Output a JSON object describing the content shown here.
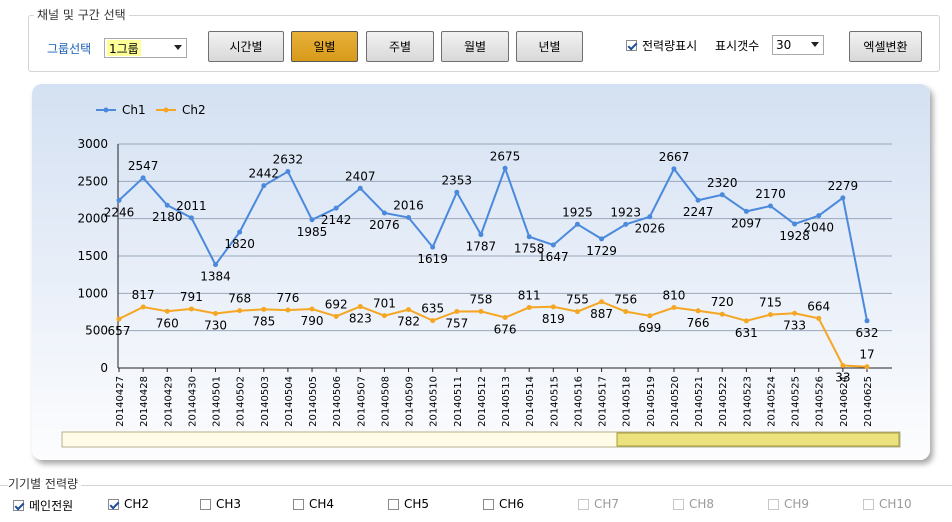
{
  "group_box": {
    "title": "채널 및 구간 선택"
  },
  "group_select": {
    "label": "그룹선택",
    "value": "1그룹"
  },
  "period_buttons": [
    {
      "label": "시간별",
      "active": false
    },
    {
      "label": "일별",
      "active": true
    },
    {
      "label": "주별",
      "active": false
    },
    {
      "label": "월별",
      "active": false
    },
    {
      "label": "년별",
      "active": false
    }
  ],
  "power_display": {
    "label": "전력량표시",
    "checked": true
  },
  "display_count": {
    "label": "표시갯수",
    "value": "30"
  },
  "excel_button": {
    "label": "엑셀변환"
  },
  "chart_data": {
    "type": "line",
    "title": "",
    "xlabel": "",
    "ylabel": "",
    "ylim": [
      0,
      3000
    ],
    "yticks": [
      0,
      500,
      1000,
      1500,
      2000,
      2500,
      3000
    ],
    "grid": true,
    "legend_position": "top-left",
    "categories": [
      "20140427",
      "20140428",
      "20140429",
      "20140430",
      "20140501",
      "20140502",
      "20140503",
      "20140504",
      "20140505",
      "20140506",
      "20140507",
      "20140508",
      "20140509",
      "20140510",
      "20140511",
      "20140512",
      "20140513",
      "20140514",
      "20140515",
      "20140516",
      "20140517",
      "20140518",
      "20140519",
      "20140520",
      "20140521",
      "20140522",
      "20140523",
      "20140524",
      "20140525",
      "20140526",
      "20140624",
      "20140625"
    ],
    "series": [
      {
        "name": "Ch1",
        "color": "#4a89dc",
        "values": [
          2246,
          2547,
          2180,
          2011,
          1384,
          1820,
          2442,
          2632,
          1985,
          2142,
          2407,
          2076,
          2016,
          1619,
          2353,
          1787,
          2675,
          1758,
          1647,
          1925,
          1729,
          1923,
          2026,
          2667,
          2247,
          2320,
          2097,
          2170,
          1928,
          2040,
          2279,
          632
        ]
      },
      {
        "name": "Ch2",
        "color": "#f5a623",
        "values": [
          657,
          817,
          760,
          791,
          730,
          768,
          785,
          776,
          790,
          692,
          823,
          701,
          782,
          635,
          757,
          758,
          676,
          811,
          819,
          755,
          887,
          756,
          699,
          810,
          766,
          720,
          631,
          715,
          733,
          664,
          33,
          17
        ]
      }
    ]
  },
  "device_section": {
    "title": "기기별 전력량"
  },
  "device_checks": [
    {
      "label": "메인전원",
      "checked": true,
      "enabled": true
    },
    {
      "label": "CH2",
      "checked": true,
      "enabled": true
    },
    {
      "label": "CH3",
      "checked": false,
      "enabled": true
    },
    {
      "label": "CH4",
      "checked": false,
      "enabled": true
    },
    {
      "label": "CH5",
      "checked": false,
      "enabled": true
    },
    {
      "label": "CH6",
      "checked": false,
      "enabled": true
    },
    {
      "label": "CH7",
      "checked": false,
      "enabled": false
    },
    {
      "label": "CH8",
      "checked": false,
      "enabled": false
    },
    {
      "label": "CH9",
      "checked": false,
      "enabled": false
    },
    {
      "label": "CH10",
      "checked": false,
      "enabled": false
    }
  ]
}
